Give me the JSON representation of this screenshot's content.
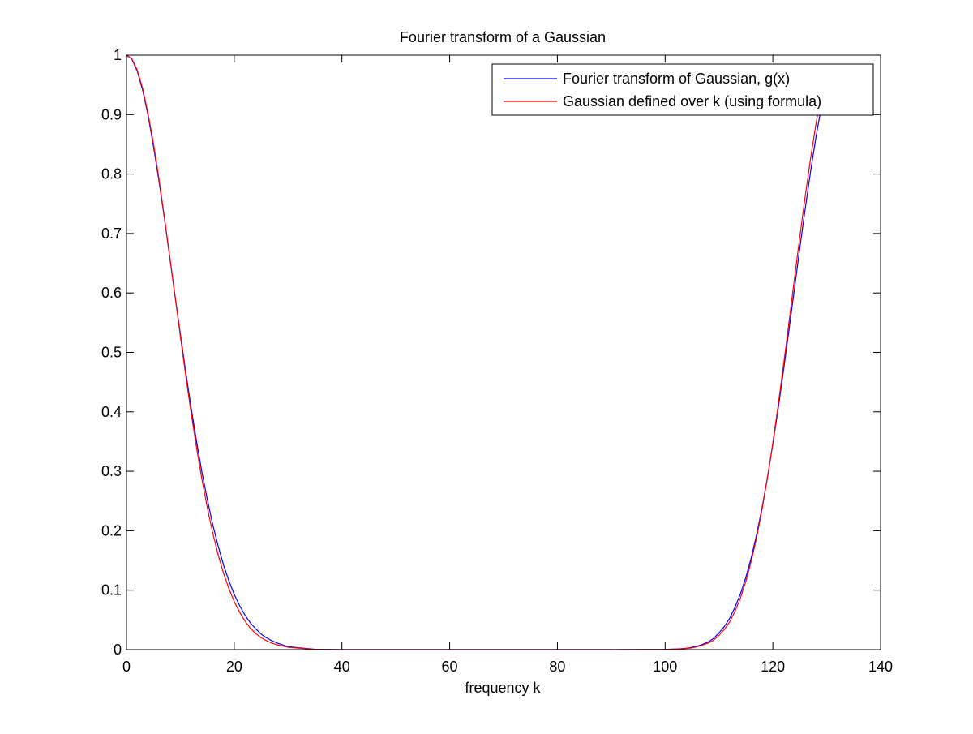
{
  "chart_data": {
    "type": "line",
    "title": "Fourier transform of a Gaussian",
    "xlabel": "frequency k",
    "ylabel": "",
    "xlim": [
      0,
      140
    ],
    "ylim": [
      0,
      1
    ],
    "xticks": [
      0,
      20,
      40,
      60,
      80,
      100,
      120,
      140
    ],
    "yticks": [
      0,
      0.1,
      0.2,
      0.3,
      0.4,
      0.5,
      0.6,
      0.7,
      0.8,
      0.9,
      1
    ],
    "grid": false,
    "legend_position": "top-right",
    "series": [
      {
        "name": "Fourier transform of Gaussian, g(x)",
        "color": "#0000ff",
        "x": [
          0,
          1,
          2,
          3,
          4,
          5,
          6,
          7,
          8,
          9,
          10,
          11,
          12,
          13,
          14,
          15,
          16,
          17,
          18,
          19,
          20,
          21,
          22,
          23,
          24,
          25,
          26,
          27,
          28,
          30,
          35,
          40,
          50,
          60,
          70,
          80,
          90,
          100,
          102,
          103,
          104,
          105,
          106,
          107,
          108,
          109,
          110,
          111,
          112,
          113,
          114,
          115,
          116,
          117,
          118,
          119,
          120,
          121,
          122,
          123,
          124,
          125,
          126,
          127,
          128,
          129,
          130
        ],
        "y": [
          1.0,
          0.993,
          0.973,
          0.941,
          0.899,
          0.847,
          0.79,
          0.728,
          0.662,
          0.596,
          0.531,
          0.467,
          0.407,
          0.351,
          0.299,
          0.253,
          0.211,
          0.175,
          0.143,
          0.116,
          0.093,
          0.074,
          0.058,
          0.045,
          0.035,
          0.026,
          0.02,
          0.015,
          0.011,
          0.005,
          0.0005,
          0.0,
          0.0,
          0.0,
          0.0,
          0.0,
          0.0,
          0.0004,
          0.001,
          0.0015,
          0.0025,
          0.004,
          0.006,
          0.009,
          0.013,
          0.019,
          0.028,
          0.039,
          0.053,
          0.072,
          0.094,
          0.122,
          0.155,
          0.194,
          0.239,
          0.29,
          0.346,
          0.406,
          0.471,
          0.538,
          0.606,
          0.675,
          0.741,
          0.804,
          0.862,
          0.913,
          0.955
        ]
      },
      {
        "name": "Gaussian defined over k (using formula)",
        "color": "#ff0000",
        "x": [
          0,
          1,
          2,
          3,
          4,
          5,
          6,
          7,
          8,
          9,
          10,
          11,
          12,
          13,
          14,
          15,
          16,
          17,
          18,
          19,
          20,
          21,
          22,
          23,
          24,
          25,
          26,
          27,
          28,
          30,
          35,
          40,
          50,
          60,
          62,
          70,
          80,
          90,
          100,
          102,
          103,
          104,
          105,
          106,
          107,
          108,
          109,
          110,
          111,
          112,
          113,
          114,
          115,
          116,
          117,
          118,
          119,
          120,
          121,
          122,
          123,
          124,
          125,
          126,
          127,
          128,
          129,
          130
        ],
        "y": [
          1.0,
          0.994,
          0.975,
          0.944,
          0.902,
          0.852,
          0.794,
          0.73,
          0.663,
          0.595,
          0.527,
          0.461,
          0.398,
          0.34,
          0.287,
          0.239,
          0.197,
          0.16,
          0.129,
          0.103,
          0.081,
          0.063,
          0.048,
          0.036,
          0.027,
          0.02,
          0.015,
          0.011,
          0.008,
          0.004,
          0.0003,
          0.0,
          0.0,
          0.0,
          0.0,
          0.0,
          0.0,
          0.0,
          0.0003,
          0.0008,
          0.0012,
          0.002,
          0.003,
          0.005,
          0.008,
          0.011,
          0.016,
          0.024,
          0.034,
          0.047,
          0.065,
          0.087,
          0.115,
          0.149,
          0.189,
          0.236,
          0.289,
          0.348,
          0.412,
          0.48,
          0.551,
          0.623,
          0.694,
          0.762,
          0.826,
          0.884,
          0.935,
          0.977
        ]
      }
    ]
  }
}
